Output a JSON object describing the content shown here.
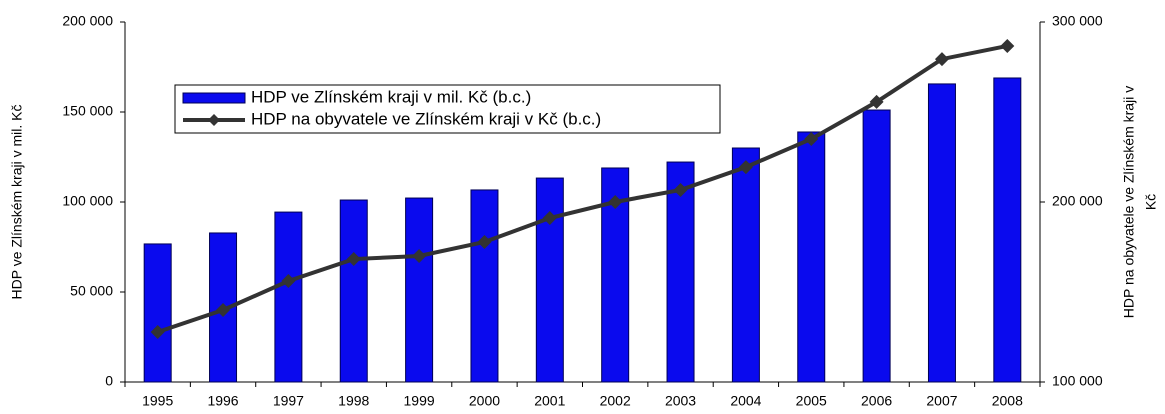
{
  "chart_data": {
    "type": "bar-line",
    "ylabel": "HDP ve Zlínském kraji v mil. Kč",
    "y2label": [
      "HDP na obyvatele ve Zlínském kraji v",
      "Kč"
    ],
    "categories": [
      "1995",
      "1996",
      "1997",
      "1998",
      "1999",
      "2000",
      "2001",
      "2002",
      "2003",
      "2004",
      "2005",
      "2006",
      "2007",
      "2008"
    ],
    "series": [
      {
        "name": "HDP ve Zlínském kraji v mil. Kč (b.c.)",
        "type": "bar",
        "color": "#0a0aee",
        "values": [
          76700,
          82800,
          94400,
          101100,
          102200,
          106700,
          113300,
          118900,
          122200,
          130000,
          138900,
          151100,
          165600,
          168900
        ]
      },
      {
        "name": "HDP na obyvatele ve Zlínském kraji v Kč (b.c.)",
        "type": "line",
        "color": "#333333",
        "axis": "y2",
        "values": [
          127800,
          140000,
          156100,
          168300,
          170000,
          177800,
          191100,
          200000,
          206700,
          219400,
          235000,
          255600,
          279400,
          286700
        ]
      }
    ],
    "ylim": [
      0,
      200000
    ],
    "yticks": [
      0,
      {
        "value": 50000,
        "label": "50 000"
      },
      {
        "value": 100000,
        "label": "100 000"
      },
      {
        "value": 150000,
        "label": "150 000"
      },
      {
        "value": 200000,
        "label": "200 000"
      }
    ],
    "y2lim": [
      100000,
      300000
    ],
    "y2ticks": [
      {
        "value": 100000,
        "label": "100 000"
      },
      {
        "value": 200000,
        "label": "200 000"
      },
      {
        "value": 300000,
        "label": "300 000"
      }
    ],
    "legend": "upper left"
  }
}
